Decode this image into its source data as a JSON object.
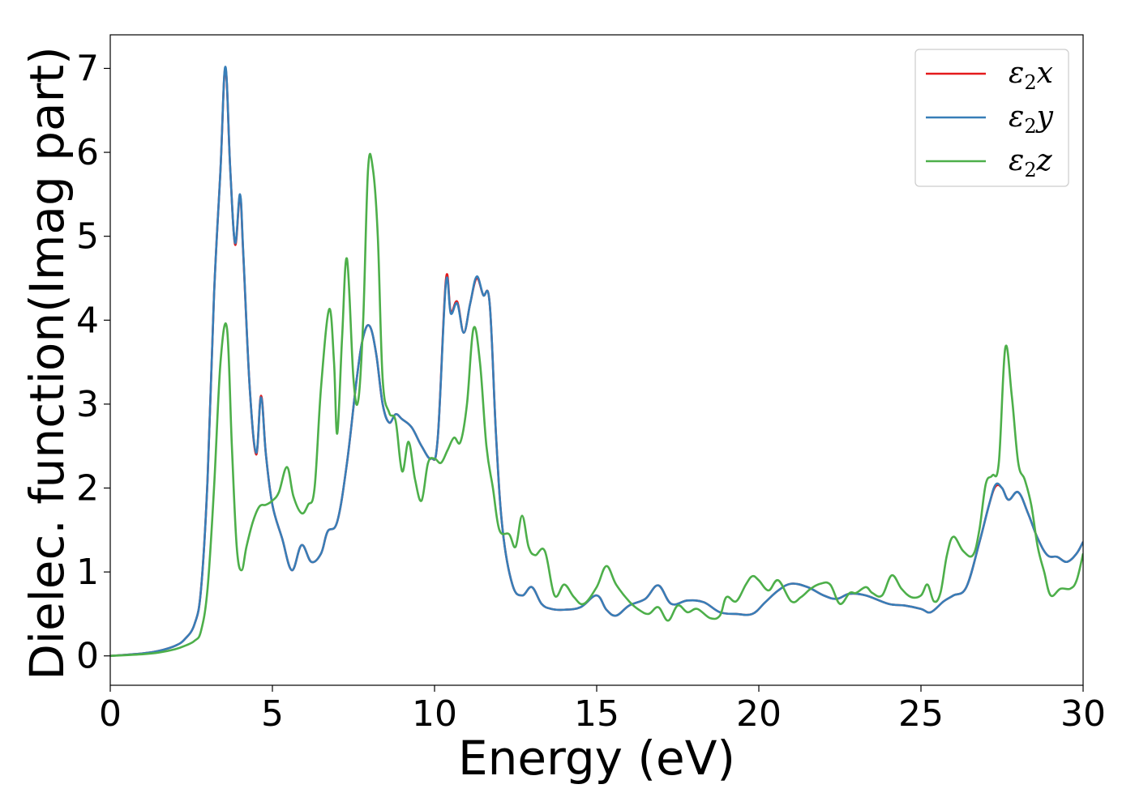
{
  "chart_data": {
    "type": "line",
    "xlabel": "Energy (eV)",
    "ylabel": "Dielec. function(Imag part)",
    "xlim": [
      0,
      30
    ],
    "ylim": [
      -0.35,
      7.4
    ],
    "xticks": [
      0,
      5,
      10,
      15,
      20,
      25,
      30
    ],
    "yticks": [
      0,
      1,
      2,
      3,
      4,
      5,
      6,
      7
    ],
    "legend_position": "top-right",
    "grid": false,
    "series": [
      {
        "name": "ε2x",
        "label_main": "ε",
        "label_sub": "2",
        "label_suffix": "x",
        "color": "#e41a1c",
        "x": [
          0,
          1,
          1.5,
          2,
          2.3,
          2.6,
          2.8,
          3.0,
          3.2,
          3.4,
          3.55,
          3.7,
          3.85,
          4.0,
          4.1,
          4.3,
          4.5,
          4.65,
          4.8,
          5.0,
          5.3,
          5.6,
          5.9,
          6.2,
          6.5,
          6.7,
          7.0,
          7.3,
          7.6,
          7.8,
          8.0,
          8.2,
          8.4,
          8.6,
          8.8,
          9.0,
          9.3,
          9.6,
          9.9,
          10.1,
          10.35,
          10.5,
          10.7,
          10.9,
          11.1,
          11.3,
          11.5,
          11.7,
          11.9,
          12.1,
          12.4,
          12.7,
          13.0,
          13.3,
          13.6,
          14.0,
          14.5,
          15.0,
          15.3,
          15.6,
          16.0,
          16.5,
          16.9,
          17.3,
          17.8,
          18.3,
          18.8,
          19.3,
          19.8,
          20.2,
          20.6,
          21.0,
          21.5,
          22.0,
          22.4,
          22.8,
          23.3,
          24.0,
          24.5,
          25.0,
          25.3,
          25.7,
          26.0,
          26.4,
          26.8,
          27.1,
          27.3,
          27.5,
          27.7,
          28.0,
          28.3,
          28.6,
          28.9,
          29.2,
          29.5,
          29.8,
          30.0
        ],
        "y": [
          0,
          0.03,
          0.06,
          0.12,
          0.2,
          0.38,
          0.8,
          2.1,
          4.3,
          5.8,
          7.0,
          5.8,
          4.9,
          5.48,
          4.8,
          3.2,
          2.4,
          3.1,
          2.4,
          1.8,
          1.4,
          1.02,
          1.32,
          1.12,
          1.22,
          1.48,
          1.6,
          2.3,
          3.3,
          3.8,
          3.93,
          3.6,
          3.0,
          2.78,
          2.88,
          2.82,
          2.72,
          2.5,
          2.35,
          2.6,
          4.48,
          4.1,
          4.22,
          3.85,
          4.2,
          4.5,
          4.3,
          4.2,
          2.6,
          1.5,
          0.85,
          0.72,
          0.82,
          0.62,
          0.56,
          0.55,
          0.58,
          0.72,
          0.55,
          0.48,
          0.6,
          0.68,
          0.84,
          0.62,
          0.66,
          0.64,
          0.52,
          0.5,
          0.5,
          0.64,
          0.78,
          0.86,
          0.82,
          0.72,
          0.68,
          0.74,
          0.72,
          0.62,
          0.6,
          0.56,
          0.52,
          0.65,
          0.72,
          0.82,
          1.35,
          1.8,
          2.02,
          2.0,
          1.86,
          1.95,
          1.7,
          1.4,
          1.2,
          1.18,
          1.12,
          1.22,
          1.36
        ]
      },
      {
        "name": "ε2y",
        "label_main": "ε",
        "label_sub": "2",
        "label_suffix": "y",
        "color": "#377eb8",
        "x": [
          0,
          1,
          1.5,
          2,
          2.3,
          2.6,
          2.8,
          3.0,
          3.2,
          3.4,
          3.55,
          3.7,
          3.85,
          4.0,
          4.1,
          4.3,
          4.5,
          4.65,
          4.8,
          5.0,
          5.3,
          5.6,
          5.9,
          6.2,
          6.5,
          6.7,
          7.0,
          7.3,
          7.6,
          7.8,
          8.0,
          8.2,
          8.4,
          8.6,
          8.8,
          9.0,
          9.3,
          9.6,
          9.9,
          10.1,
          10.35,
          10.5,
          10.7,
          10.9,
          11.1,
          11.3,
          11.5,
          11.7,
          11.9,
          12.1,
          12.4,
          12.7,
          13.0,
          13.3,
          13.6,
          14.0,
          14.5,
          15.0,
          15.3,
          15.6,
          16.0,
          16.5,
          16.9,
          17.3,
          17.8,
          18.3,
          18.8,
          19.3,
          19.8,
          20.2,
          20.6,
          21.0,
          21.5,
          22.0,
          22.4,
          22.8,
          23.3,
          24.0,
          24.5,
          25.0,
          25.3,
          25.7,
          26.0,
          26.4,
          26.8,
          27.1,
          27.3,
          27.5,
          27.7,
          28.0,
          28.3,
          28.6,
          28.9,
          29.2,
          29.5,
          29.8,
          30.0
        ],
        "y": [
          0,
          0.03,
          0.06,
          0.12,
          0.2,
          0.38,
          0.8,
          2.1,
          4.3,
          5.8,
          7.02,
          5.8,
          4.92,
          5.5,
          4.82,
          3.2,
          2.42,
          3.08,
          2.4,
          1.8,
          1.4,
          1.02,
          1.32,
          1.12,
          1.22,
          1.48,
          1.6,
          2.3,
          3.3,
          3.8,
          3.93,
          3.6,
          3.0,
          2.78,
          2.88,
          2.82,
          2.72,
          2.5,
          2.35,
          2.6,
          4.44,
          4.08,
          4.2,
          3.85,
          4.2,
          4.52,
          4.3,
          4.2,
          2.6,
          1.5,
          0.85,
          0.72,
          0.82,
          0.62,
          0.56,
          0.55,
          0.58,
          0.72,
          0.55,
          0.48,
          0.6,
          0.68,
          0.84,
          0.62,
          0.66,
          0.64,
          0.52,
          0.5,
          0.5,
          0.64,
          0.78,
          0.86,
          0.82,
          0.72,
          0.68,
          0.74,
          0.72,
          0.62,
          0.6,
          0.56,
          0.52,
          0.65,
          0.72,
          0.82,
          1.35,
          1.8,
          2.04,
          2.0,
          1.86,
          1.95,
          1.7,
          1.4,
          1.2,
          1.18,
          1.12,
          1.22,
          1.36
        ]
      },
      {
        "name": "ε2z",
        "label_main": "ε",
        "label_sub": "2",
        "label_suffix": "z",
        "color": "#4daf4a",
        "x": [
          0,
          1,
          1.5,
          2,
          2.3,
          2.6,
          2.8,
          3.0,
          3.2,
          3.4,
          3.6,
          3.75,
          3.9,
          4.05,
          4.2,
          4.4,
          4.6,
          4.8,
          5.0,
          5.2,
          5.45,
          5.65,
          5.9,
          6.1,
          6.3,
          6.5,
          6.75,
          6.9,
          7.0,
          7.15,
          7.3,
          7.5,
          7.65,
          7.8,
          7.95,
          8.1,
          8.25,
          8.4,
          8.6,
          8.8,
          9.0,
          9.2,
          9.4,
          9.6,
          9.8,
          10.0,
          10.2,
          10.4,
          10.6,
          10.8,
          11.0,
          11.2,
          11.4,
          11.6,
          11.8,
          12.0,
          12.3,
          12.5,
          12.7,
          12.9,
          13.1,
          13.4,
          13.7,
          14.0,
          14.3,
          14.6,
          15.0,
          15.3,
          15.6,
          16.0,
          16.3,
          16.6,
          16.9,
          17.2,
          17.5,
          17.8,
          18.1,
          18.5,
          18.8,
          19.0,
          19.3,
          19.6,
          19.8,
          20.0,
          20.3,
          20.6,
          21.0,
          21.3,
          21.6,
          21.9,
          22.2,
          22.5,
          22.8,
          23.0,
          23.3,
          23.5,
          23.8,
          24.1,
          24.4,
          24.7,
          25.0,
          25.2,
          25.4,
          25.6,
          25.8,
          26.0,
          26.3,
          26.6,
          26.8,
          27.0,
          27.2,
          27.4,
          27.6,
          27.8,
          28.0,
          28.2,
          28.4,
          28.6,
          28.8,
          29.0,
          29.3,
          29.6,
          29.8,
          30.0
        ],
        "y": [
          0,
          0.02,
          0.04,
          0.08,
          0.12,
          0.18,
          0.3,
          0.8,
          2.0,
          3.5,
          3.9,
          2.5,
          1.3,
          1.02,
          1.3,
          1.6,
          1.78,
          1.8,
          1.85,
          1.95,
          2.25,
          1.9,
          1.7,
          1.8,
          2.0,
          3.2,
          4.13,
          3.5,
          2.65,
          3.8,
          4.73,
          3.3,
          3.05,
          4.0,
          5.8,
          5.8,
          5.0,
          3.3,
          2.9,
          2.8,
          2.2,
          2.55,
          2.1,
          1.85,
          2.3,
          2.35,
          2.3,
          2.45,
          2.6,
          2.55,
          3.0,
          3.9,
          3.5,
          2.5,
          2.0,
          1.5,
          1.45,
          1.3,
          1.67,
          1.3,
          1.2,
          1.25,
          0.72,
          0.85,
          0.7,
          0.62,
          0.82,
          1.07,
          0.85,
          0.65,
          0.55,
          0.5,
          0.58,
          0.42,
          0.6,
          0.52,
          0.56,
          0.45,
          0.48,
          0.7,
          0.65,
          0.85,
          0.95,
          0.9,
          0.78,
          0.9,
          0.65,
          0.7,
          0.8,
          0.86,
          0.85,
          0.62,
          0.75,
          0.75,
          0.82,
          0.75,
          0.72,
          0.96,
          0.8,
          0.7,
          0.72,
          0.85,
          0.65,
          0.75,
          1.2,
          1.42,
          1.25,
          1.2,
          1.5,
          2.05,
          2.15,
          2.3,
          3.67,
          3.1,
          2.3,
          2.1,
          1.8,
          1.3,
          1.0,
          0.72,
          0.8,
          0.8,
          0.9,
          1.22
        ]
      }
    ]
  }
}
